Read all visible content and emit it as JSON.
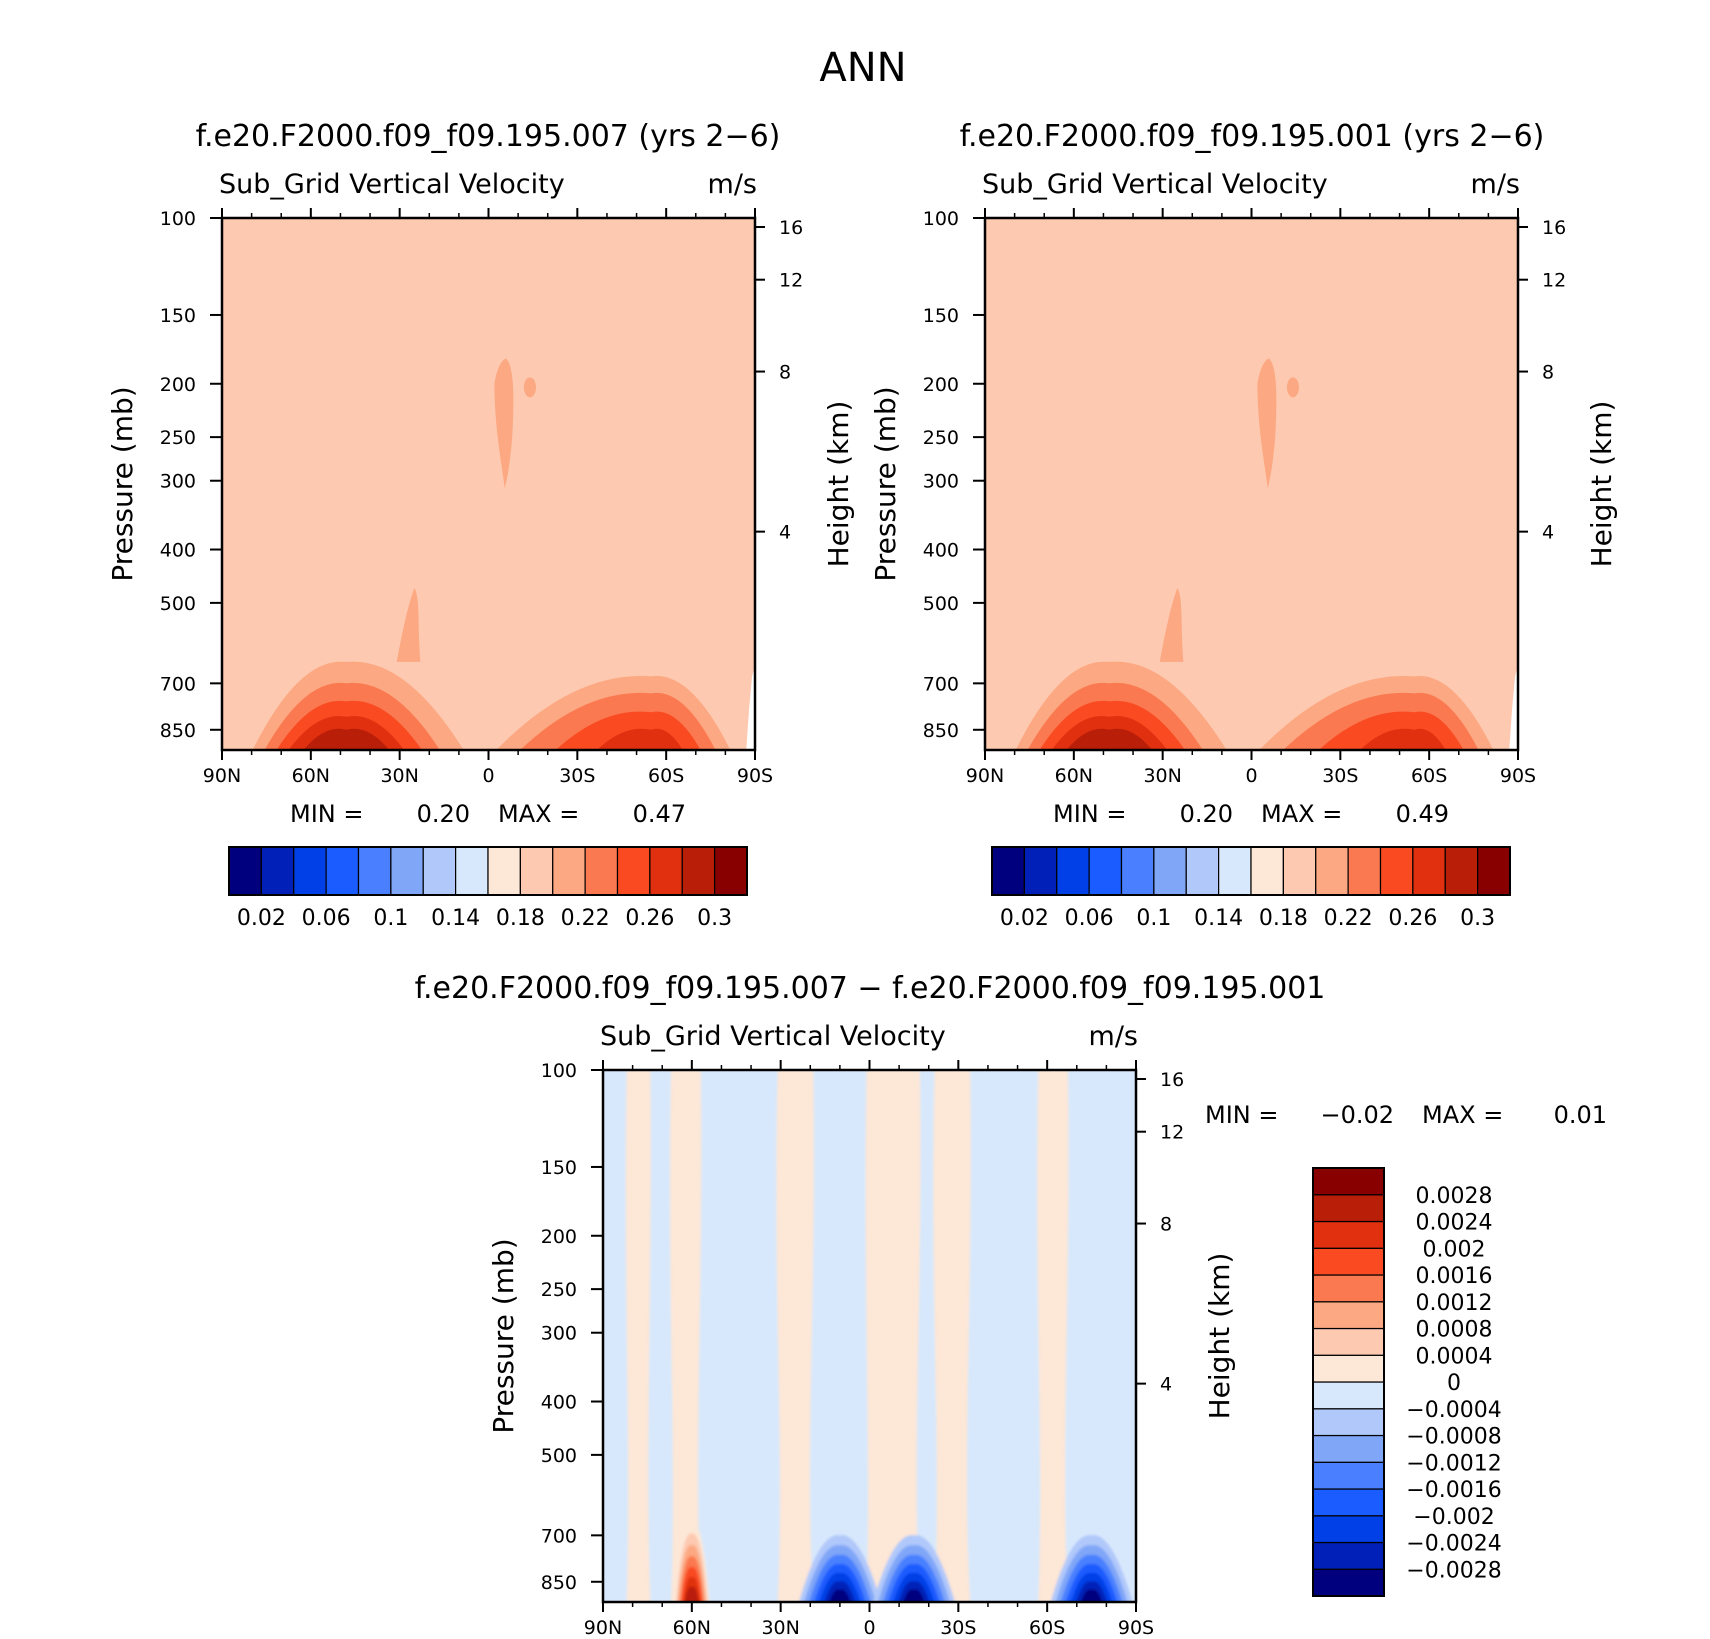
{
  "figure": {
    "title": "ANN",
    "panels": [
      {
        "id": "case1",
        "case_title": "f.e20.F2000.f09_f09.195.007 (yrs 2−6)",
        "variable": "Sub_Grid Vertical Velocity",
        "units": "m/s",
        "ylabel": "Pressure (mb)",
        "y2label": "Height (km)",
        "min_label": "MIN =",
        "min_value": "0.20",
        "max_label": "MAX =",
        "max_value": "0.47"
      },
      {
        "id": "case2",
        "case_title": "f.e20.F2000.f09_f09.195.001 (yrs 2−6)",
        "variable": "Sub_Grid Vertical Velocity",
        "units": "m/s",
        "ylabel": "Pressure (mb)",
        "y2label": "Height (km)",
        "min_label": "MIN =",
        "min_value": "0.20",
        "max_label": "MAX =",
        "max_value": "0.49"
      },
      {
        "id": "diff",
        "case_title": "f.e20.F2000.f09_f09.195.007 − f.e20.F2000.f09_f09.195.001",
        "variable": "Sub_Grid Vertical Velocity",
        "units": "m/s",
        "ylabel": "Pressure (mb)",
        "y2label": "Height (km)",
        "min_label": "MIN =",
        "min_value": "−0.02",
        "max_label": "MAX =",
        "max_value": "0.01"
      }
    ]
  },
  "chart_data": [
    {
      "type": "heatmap",
      "panel": "case1",
      "x_ticks": [
        "90N",
        "60N",
        "30N",
        "0",
        "30S",
        "60S",
        "90S"
      ],
      "y_ticks": [
        "100",
        "150",
        "200",
        "250",
        "300",
        "400",
        "500",
        "700",
        "850"
      ],
      "y_tick_values": [
        100,
        150,
        200,
        250,
        300,
        400,
        500,
        700,
        850
      ],
      "y2_ticks": [
        "16",
        "12",
        "8",
        "4"
      ],
      "y2_tick_values": [
        16,
        12,
        8,
        4
      ],
      "xlim": [
        90,
        -90
      ],
      "ylim": [
        925,
        100
      ],
      "y_scale": "log",
      "background_value": 0.2,
      "colorbar_levels": [
        0.02,
        0.04,
        0.06,
        0.08,
        0.1,
        0.12,
        0.14,
        0.16,
        0.18,
        0.2,
        0.22,
        0.24,
        0.26,
        0.28,
        0.3
      ],
      "colorbar_labels": [
        "0.02",
        "0.06",
        "0.1",
        "0.14",
        "0.18",
        "0.22",
        "0.26",
        "0.3"
      ],
      "colorbar_colors": [
        "#00007f",
        "#0020b8",
        "#0040e6",
        "#1a5cff",
        "#4a80ff",
        "#80a6f8",
        "#b0c8fa",
        "#d8e8fc",
        "#fde7d7",
        "#fdc9b0",
        "#fca882",
        "#fb7950",
        "#f94a22",
        "#e03010",
        "#b81e08",
        "#880000"
      ],
      "features": [
        {
          "type": "upper_tongue",
          "lat": -6,
          "value": 0.22
        },
        {
          "type": "spot",
          "lat": -9,
          "value": 0.22
        },
        {
          "type": "mid_plume",
          "lat": 26,
          "value": 0.22
        },
        {
          "type": "nh_maximum",
          "lat": 48,
          "value": 0.3
        },
        {
          "type": "sh_maximum",
          "lat": -55,
          "value": 0.28
        }
      ]
    },
    {
      "type": "heatmap",
      "panel": "case2",
      "x_ticks": [
        "90N",
        "60N",
        "30N",
        "0",
        "30S",
        "60S",
        "90S"
      ],
      "y_ticks": [
        "100",
        "150",
        "200",
        "250",
        "300",
        "400",
        "500",
        "700",
        "850"
      ],
      "y_tick_values": [
        100,
        150,
        200,
        250,
        300,
        400,
        500,
        700,
        850
      ],
      "y2_ticks": [
        "16",
        "12",
        "8",
        "4"
      ],
      "y2_tick_values": [
        16,
        12,
        8,
        4
      ],
      "xlim": [
        90,
        -90
      ],
      "ylim": [
        925,
        100
      ],
      "y_scale": "log",
      "background_value": 0.2,
      "colorbar_levels": [
        0.02,
        0.04,
        0.06,
        0.08,
        0.1,
        0.12,
        0.14,
        0.16,
        0.18,
        0.2,
        0.22,
        0.24,
        0.26,
        0.28,
        0.3
      ],
      "colorbar_labels": [
        "0.02",
        "0.06",
        "0.1",
        "0.14",
        "0.18",
        "0.22",
        "0.26",
        "0.3"
      ],
      "colorbar_colors": [
        "#00007f",
        "#0020b8",
        "#0040e6",
        "#1a5cff",
        "#4a80ff",
        "#80a6f8",
        "#b0c8fa",
        "#d8e8fc",
        "#fde7d7",
        "#fdc9b0",
        "#fca882",
        "#fb7950",
        "#f94a22",
        "#e03010",
        "#b81e08",
        "#880000"
      ],
      "features": [
        {
          "type": "upper_tongue",
          "lat": -6,
          "value": 0.22
        },
        {
          "type": "spot",
          "lat": -9,
          "value": 0.22
        },
        {
          "type": "mid_plume",
          "lat": 26,
          "value": 0.22
        },
        {
          "type": "nh_maximum",
          "lat": 48,
          "value": 0.3
        },
        {
          "type": "sh_maximum",
          "lat": -55,
          "value": 0.28
        }
      ]
    },
    {
      "type": "heatmap",
      "panel": "diff",
      "x_ticks": [
        "90N",
        "60N",
        "30N",
        "0",
        "30S",
        "60S",
        "90S"
      ],
      "y_ticks": [
        "100",
        "150",
        "200",
        "250",
        "300",
        "400",
        "500",
        "700",
        "850"
      ],
      "y_tick_values": [
        100,
        150,
        200,
        250,
        300,
        400,
        500,
        700,
        850
      ],
      "y2_ticks": [
        "16",
        "12",
        "8",
        "4"
      ],
      "y2_tick_values": [
        16,
        12,
        8,
        4
      ],
      "xlim": [
        90,
        -90
      ],
      "ylim": [
        925,
        100
      ],
      "y_scale": "log",
      "background_value": -0.0002,
      "colorbar_levels": [
        -0.0028,
        -0.0024,
        -0.002,
        -0.0016,
        -0.0012,
        -0.0008,
        -0.0004,
        0,
        0.0004,
        0.0008,
        0.0012,
        0.0016,
        0.002,
        0.0024,
        0.0028
      ],
      "colorbar_labels": [
        "−0.0028",
        "−0.0024",
        "−0.002",
        "−0.0016",
        "−0.0012",
        "−0.0008",
        "−0.0004",
        "0",
        "0.0004",
        "0.0008",
        "0.0012",
        "0.0016",
        "0.002",
        "0.0024",
        "0.0028"
      ],
      "colorbar_colors": [
        "#00007f",
        "#0020b8",
        "#0040e6",
        "#1a5cff",
        "#4a80ff",
        "#80a6f8",
        "#b0c8fa",
        "#d8e8fc",
        "#fde7d7",
        "#fdc9b0",
        "#fca882",
        "#fb7950",
        "#f94a22",
        "#e03010",
        "#b81e08",
        "#880000"
      ],
      "features": [
        {
          "type": "positive_bands",
          "lats": [
            78,
            62,
            25,
            -3,
            -11,
            -28,
            -62
          ],
          "value": 0.0002
        },
        {
          "type": "nh_positive_surface",
          "lat": 60,
          "value": 0.0028
        },
        {
          "type": "sh_negative_surface",
          "lats": [
            10,
            -15,
            -75
          ],
          "value": -0.0028
        }
      ]
    }
  ]
}
